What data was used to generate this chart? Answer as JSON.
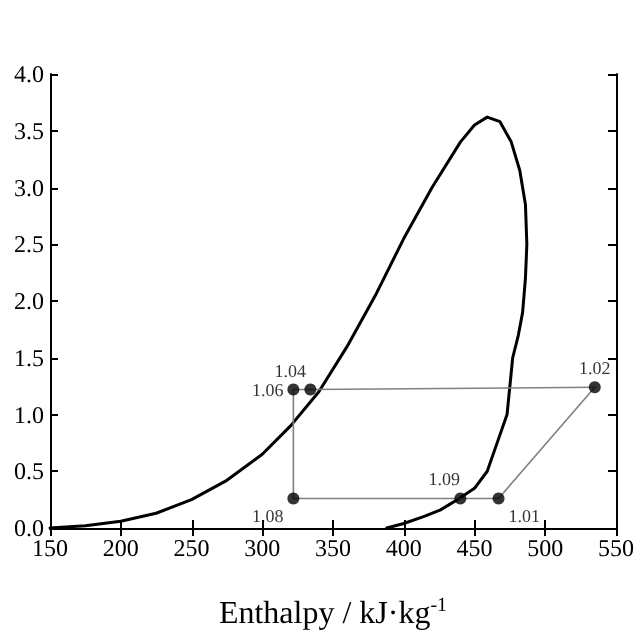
{
  "chart_data": {
    "type": "line",
    "xlabel": "Enthalpy / kJ·kg$^{-1}$",
    "xlim": [
      150,
      550
    ],
    "xticks": [
      150,
      200,
      250,
      300,
      350,
      400,
      450,
      500,
      550
    ],
    "ylim": [
      0,
      4
    ],
    "yticks": [
      {
        "value": 0,
        "label": "0.0"
      },
      0.5,
      {
        "value": 1,
        "label": "1.0"
      },
      1.5,
      {
        "value": 2,
        "label": "2.0"
      },
      2.5,
      {
        "value": 3,
        "label": "3.0"
      },
      3.5,
      {
        "value": 4,
        "label": "4.0"
      }
    ],
    "grid": false,
    "annotations": [
      {
        "text": "1.01",
        "x": 467,
        "y": 0.26
      },
      {
        "text": "1.02",
        "x": 535,
        "y": 1.24
      },
      {
        "text": "1.04",
        "x": 334,
        "y": 1.22
      },
      {
        "text": "1.06",
        "x": 322,
        "y": 1.22
      },
      {
        "text": "1.08",
        "x": 322,
        "y": 0.26
      },
      {
        "text": "1.09",
        "x": 440,
        "y": 0.26
      }
    ],
    "series": [
      {
        "color": "#000000",
        "marker": "none",
        "x": [
          150,
          175,
          200,
          225,
          250,
          275,
          300,
          320,
          340,
          360,
          380,
          400,
          420,
          440,
          450,
          459,
          468,
          476,
          482,
          486,
          487,
          486,
          484,
          481,
          477,
          473,
          466,
          459,
          450,
          438,
          426,
          414,
          400,
          388
        ],
        "values": [
          0,
          0.02,
          0.06,
          0.13,
          0.25,
          0.42,
          0.65,
          0.9,
          1.2,
          1.6,
          2.05,
          2.55,
          3.0,
          3.4,
          3.55,
          3.62,
          3.58,
          3.4,
          3.15,
          2.85,
          2.5,
          2.2,
          1.9,
          1.7,
          1.5,
          1.0,
          0.75,
          0.5,
          0.35,
          0.25,
          0.16,
          0.1,
          0.04,
          0
        ]
      },
      {
        "color": "#808080",
        "marker": "none",
        "x": [
          322,
          440,
          467,
          535
        ],
        "values": [
          0.26,
          0.26,
          0.26,
          1.24
        ]
      },
      {
        "color": "#808080",
        "marker": "none",
        "x": [
          535,
          334,
          322,
          322
        ],
        "values": [
          1.24,
          1.22,
          1.22,
          0.26
        ]
      },
      {
        "type": "scatter",
        "color": "#000000",
        "marker": "circle",
        "x": [
          467,
          535,
          334,
          322,
          322,
          440
        ],
        "values": [
          0.26,
          1.24,
          1.22,
          1.22,
          0.26,
          0.26
        ]
      }
    ]
  }
}
